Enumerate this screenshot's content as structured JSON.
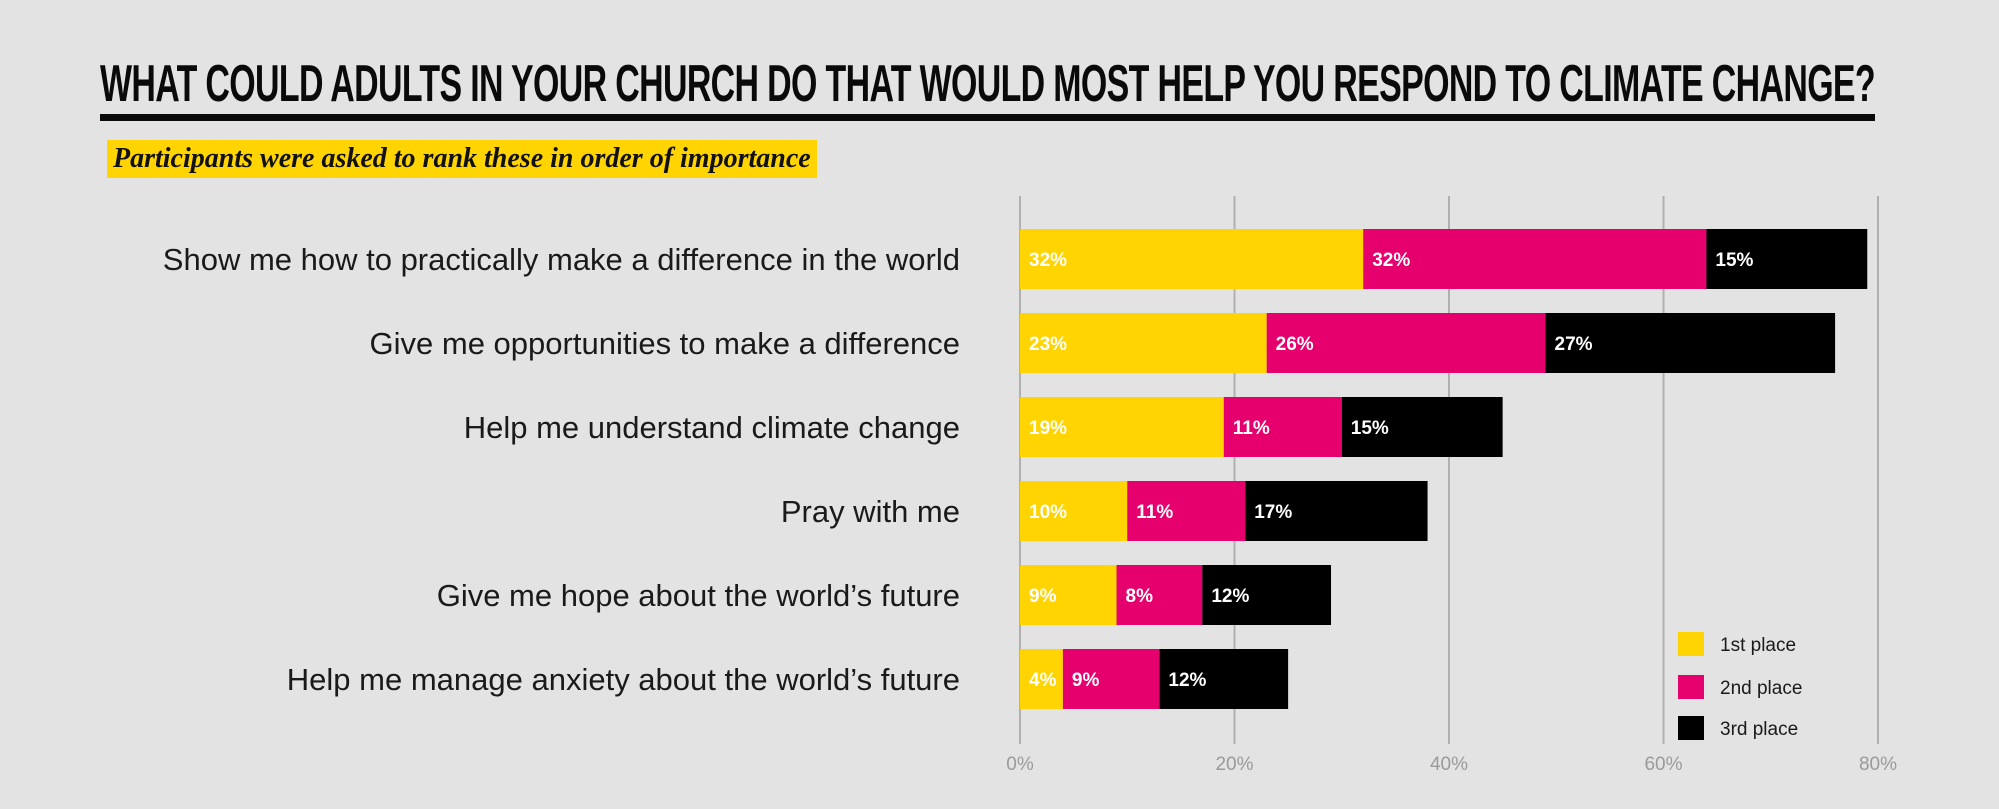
{
  "header": {
    "title": "WHAT COULD ADULTS IN YOUR CHURCH DO THAT WOULD MOST HELP YOU RESPOND TO CLIMATE CHANGE?",
    "subtitle": "Participants were asked to rank these in order of importance"
  },
  "colors": {
    "first": "#ffd400",
    "second": "#e6006e",
    "third": "#000000",
    "gridline": "#b0b0b0",
    "background": "#e3e3e3"
  },
  "chart_data": {
    "type": "bar",
    "orientation": "horizontal",
    "stacked": true,
    "categories": [
      "Show me how to practically make a difference in the world",
      "Give me opportunities to make a difference",
      "Help me understand climate change",
      "Pray with me",
      "Give me hope about the world’s future",
      "Help me manage anxiety about the world’s future"
    ],
    "series": [
      {
        "name": "1st place",
        "values": [
          32,
          23,
          19,
          10,
          9,
          4
        ],
        "labels": [
          "32%",
          "23%",
          "19%",
          "10%",
          "9%",
          "4%"
        ]
      },
      {
        "name": "2nd place",
        "values": [
          32,
          26,
          11,
          11,
          8,
          9
        ],
        "labels": [
          "32%",
          "26%",
          "11%",
          "11%",
          "8%",
          "9%"
        ]
      },
      {
        "name": "3rd place",
        "values": [
          15,
          27,
          15,
          17,
          12,
          12
        ],
        "labels": [
          "15%",
          "27%",
          "15%",
          "17%",
          "12%",
          "12%"
        ]
      }
    ],
    "xlim": [
      0,
      80
    ],
    "xticks": [
      0,
      20,
      40,
      60,
      80
    ],
    "xtick_labels": [
      "0%",
      "20%",
      "40%",
      "60%",
      "80%"
    ],
    "grid": true,
    "legend_position": "bottom-right",
    "title": "WHAT COULD ADULTS IN YOUR CHURCH DO THAT WOULD MOST HELP YOU RESPOND TO CLIMATE CHANGE?",
    "subtitle": "Participants were asked to rank these in order of importance"
  }
}
